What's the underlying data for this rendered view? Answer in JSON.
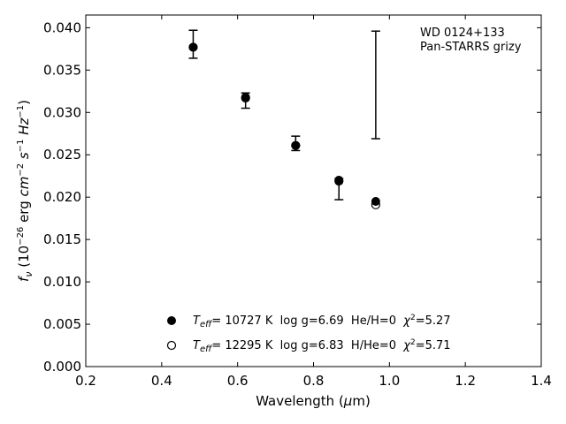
{
  "chart_data": {
    "type": "scatter",
    "xlabel": "Wavelength (μm)",
    "ylabel": "f_ν (10^−26 erg cm^−2 s^−1 Hz^−1)",
    "xlim": [
      0.2,
      1.4
    ],
    "ylim": [
      0.0,
      0.0415
    ],
    "xticks": [
      "0.2",
      "0.4",
      "0.6",
      "0.8",
      "1.0",
      "1.2",
      "1.4"
    ],
    "yticks": [
      "0.000",
      "0.005",
      "0.010",
      "0.015",
      "0.020",
      "0.025",
      "0.030",
      "0.035",
      "0.040"
    ],
    "annotation": [
      "WD 0124+133",
      "Pan-STARRS grizy"
    ],
    "observed": {
      "x": [
        0.964
      ],
      "y_low": [
        0.0269
      ],
      "y_high": [
        0.0396
      ]
    },
    "series": [
      {
        "name": "T_eff= 10727 K  log g=6.69  He/H=0  χ²=5.27",
        "marker": "filled",
        "x": [
          0.483,
          0.621,
          0.753,
          0.867,
          0.964
        ],
        "y": [
          0.0377,
          0.0318,
          0.0261,
          0.022,
          0.0195
        ],
        "y_err_low": [
          0.0013,
          0.0013,
          0.0006,
          0.0023,
          null
        ],
        "y_err_high": [
          0.002,
          0.0005,
          0.0011,
          0.0002,
          null
        ]
      },
      {
        "name": "T_eff= 12295 K  log g=6.83  H/He=0  χ²=5.71",
        "marker": "open",
        "x": [
          0.483,
          0.621,
          0.753,
          0.867,
          0.964
        ],
        "y": [
          0.0377,
          0.0317,
          0.0261,
          0.0219,
          0.0191
        ]
      }
    ],
    "legend": {
      "placement": "lower-center",
      "entries": [
        {
          "T": "T",
          "sub": "eff",
          "rest": "= 10727 K  log g=6.69  He/H=0  ",
          "chi": "χ",
          "sup": "2",
          "val": "=5.27"
        },
        {
          "T": "T",
          "sub": "eff",
          "rest": "= 12295 K  log g=6.83  H/He=0  ",
          "chi": "χ",
          "sup": "2",
          "val": "=5.71"
        }
      ]
    },
    "colors": {
      "marker": "#000000",
      "axis": "#000000",
      "background": "#ffffff"
    }
  }
}
